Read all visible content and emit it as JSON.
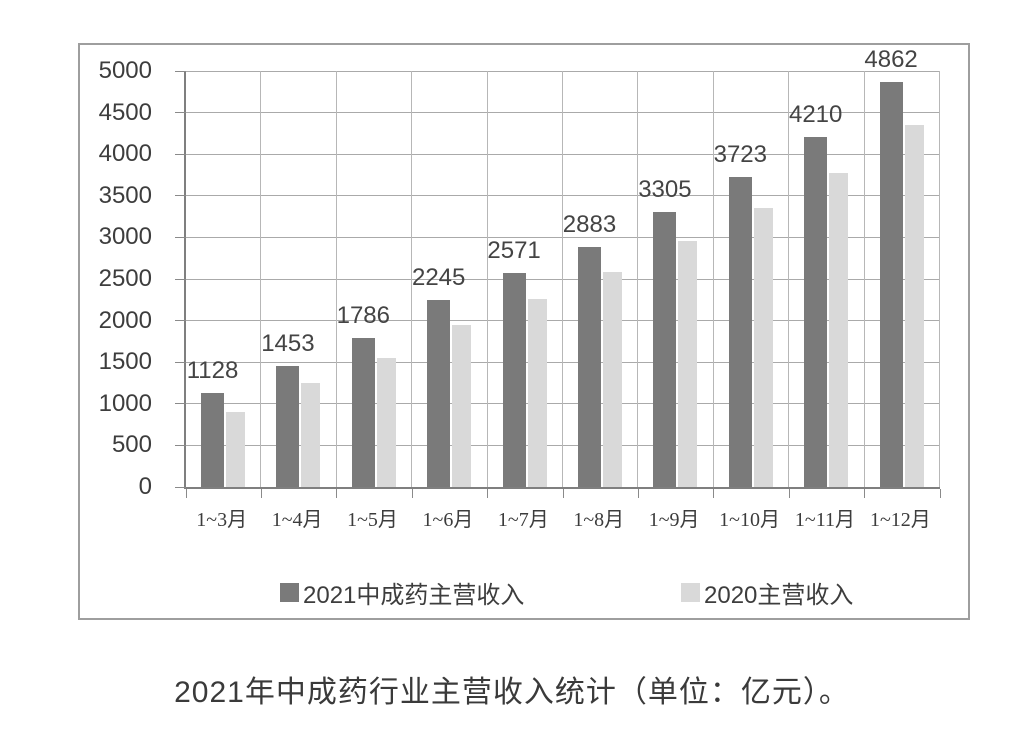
{
  "caption": "2021年中成药行业主营收入统计（单位：亿元）。",
  "chart_data": {
    "type": "bar",
    "title": "",
    "xlabel": "",
    "ylabel": "",
    "unit": "亿元",
    "categories": [
      "1~3月",
      "1~4月",
      "1~5月",
      "1~6月",
      "1~7月",
      "1~8月",
      "1~9月",
      "1~10月",
      "1~11月",
      "1~12月"
    ],
    "series": [
      {
        "name": "2021中成药主营收入",
        "color": "#7a7a7a",
        "data_labels": true,
        "values": [
          1128,
          1453,
          1786,
          2245,
          2571,
          2883,
          3305,
          3723,
          4210,
          4862
        ]
      },
      {
        "name": "2020主营收入",
        "color": "#d9d9d9",
        "data_labels": false,
        "values_estimated": true,
        "values": [
          900,
          1250,
          1550,
          1950,
          2260,
          2580,
          2960,
          3350,
          3780,
          4350
        ]
      }
    ],
    "ylim": [
      0,
      5000
    ],
    "yticks": [
      0,
      500,
      1000,
      1500,
      2000,
      2500,
      3000,
      3500,
      4000,
      4500,
      5000
    ],
    "grid": {
      "horizontal": true,
      "vertical": true
    },
    "legend_position": "bottom",
    "style": {
      "hgrid_color": "#aaaaaa",
      "vgrid_color": "#b7b7b7",
      "axis_color": "#7f7f7f",
      "box_border_color": "#9e9e9e",
      "text_color": "#3d3d3d"
    }
  }
}
